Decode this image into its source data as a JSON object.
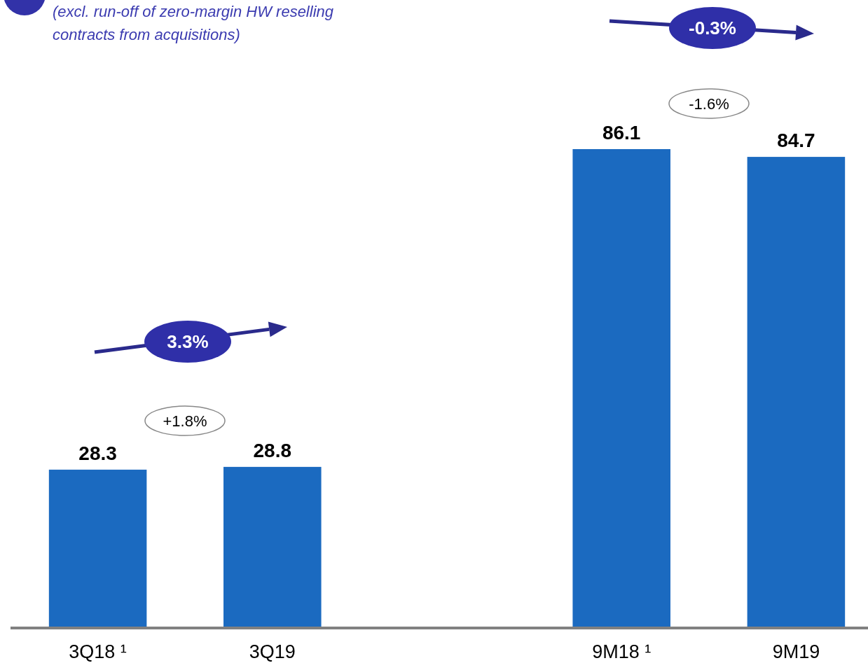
{
  "chart_data": {
    "type": "bar",
    "categories": [
      "3Q18 ¹",
      "3Q19",
      null,
      "9M18 ¹",
      "9M19"
    ],
    "values": [
      28.3,
      28.8,
      null,
      86.1,
      84.7
    ],
    "color": "#1b6ac0",
    "data_labels": true,
    "annotations": [
      "(excl. run-off of zero-margin HW reselling contracts from acquisitions)",
      "3.3%",
      "+1.8%",
      "-0.3%",
      "-1.6%"
    ]
  }
}
